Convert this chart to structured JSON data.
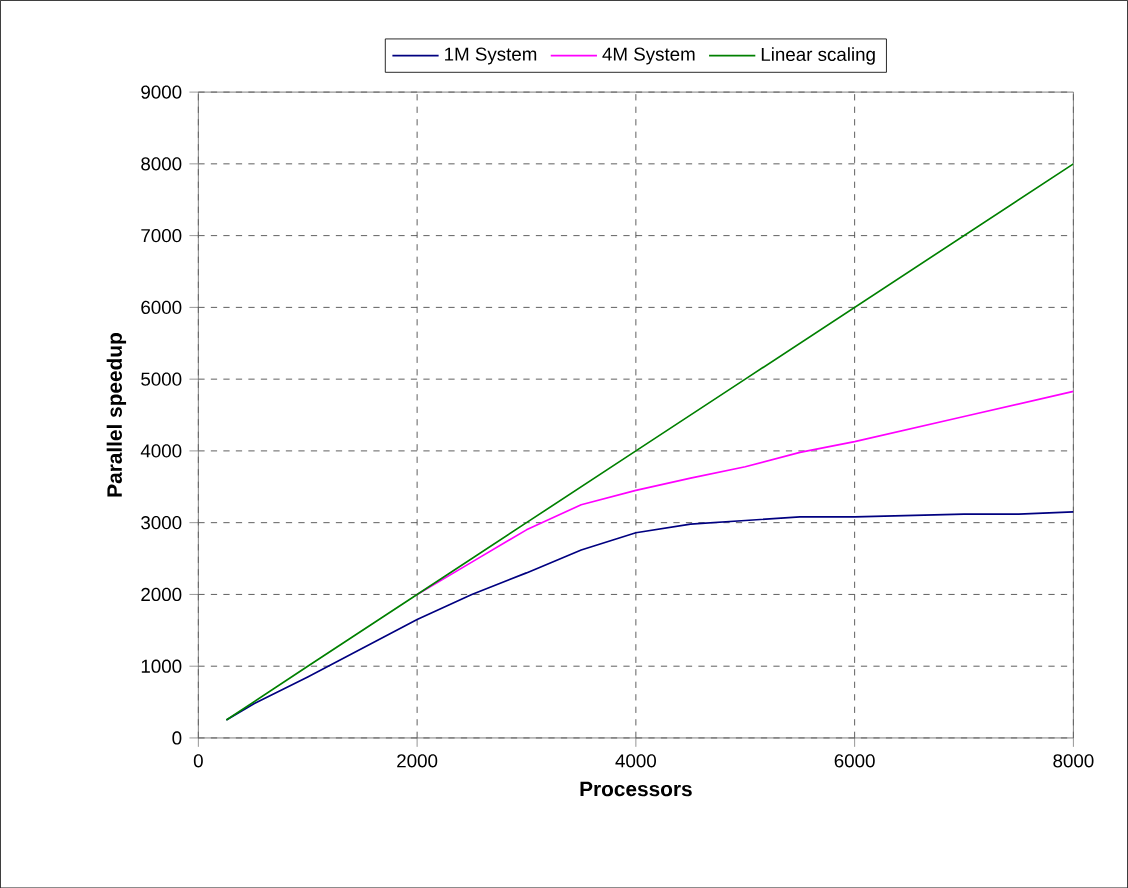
{
  "chart_data": {
    "type": "line",
    "xlabel": "Processors",
    "ylabel": "Parallel speedup",
    "xlim": [
      0,
      8000
    ],
    "ylim": [
      0,
      9000
    ],
    "xticks": [
      0,
      2000,
      4000,
      6000,
      8000
    ],
    "yticks": [
      0,
      1000,
      2000,
      3000,
      4000,
      5000,
      6000,
      7000,
      8000,
      9000
    ],
    "grid": true,
    "legend": "top",
    "line_style": "solid",
    "marker": "none",
    "series": [
      {
        "name": "1M System",
        "color": "#000080",
        "x": [
          256,
          512,
          1000,
          1500,
          2000,
          2500,
          3000,
          3500,
          4000,
          4500,
          5000,
          5500,
          6000,
          7000,
          7500,
          8000
        ],
        "values": [
          250,
          480,
          850,
          1250,
          1650,
          2000,
          2300,
          2620,
          2860,
          2980,
          3030,
          3080,
          3080,
          3120,
          3120,
          3150
        ]
      },
      {
        "name": "4M System",
        "color": "#ff00ff",
        "x": [
          2000,
          2500,
          3000,
          3500,
          4000,
          4500,
          5000,
          5500,
          6000,
          7000,
          8000
        ],
        "values": [
          2000,
          2450,
          2900,
          3250,
          3450,
          3620,
          3780,
          3980,
          4130,
          4480,
          4830
        ]
      },
      {
        "name": "Linear scaling",
        "color": "#008000",
        "x": [
          256,
          1000,
          2000,
          3000,
          4000,
          5000,
          6000,
          7000,
          8000
        ],
        "values": [
          250,
          1000,
          2000,
          3000,
          4000,
          5000,
          6000,
          7000,
          8000
        ]
      }
    ]
  }
}
